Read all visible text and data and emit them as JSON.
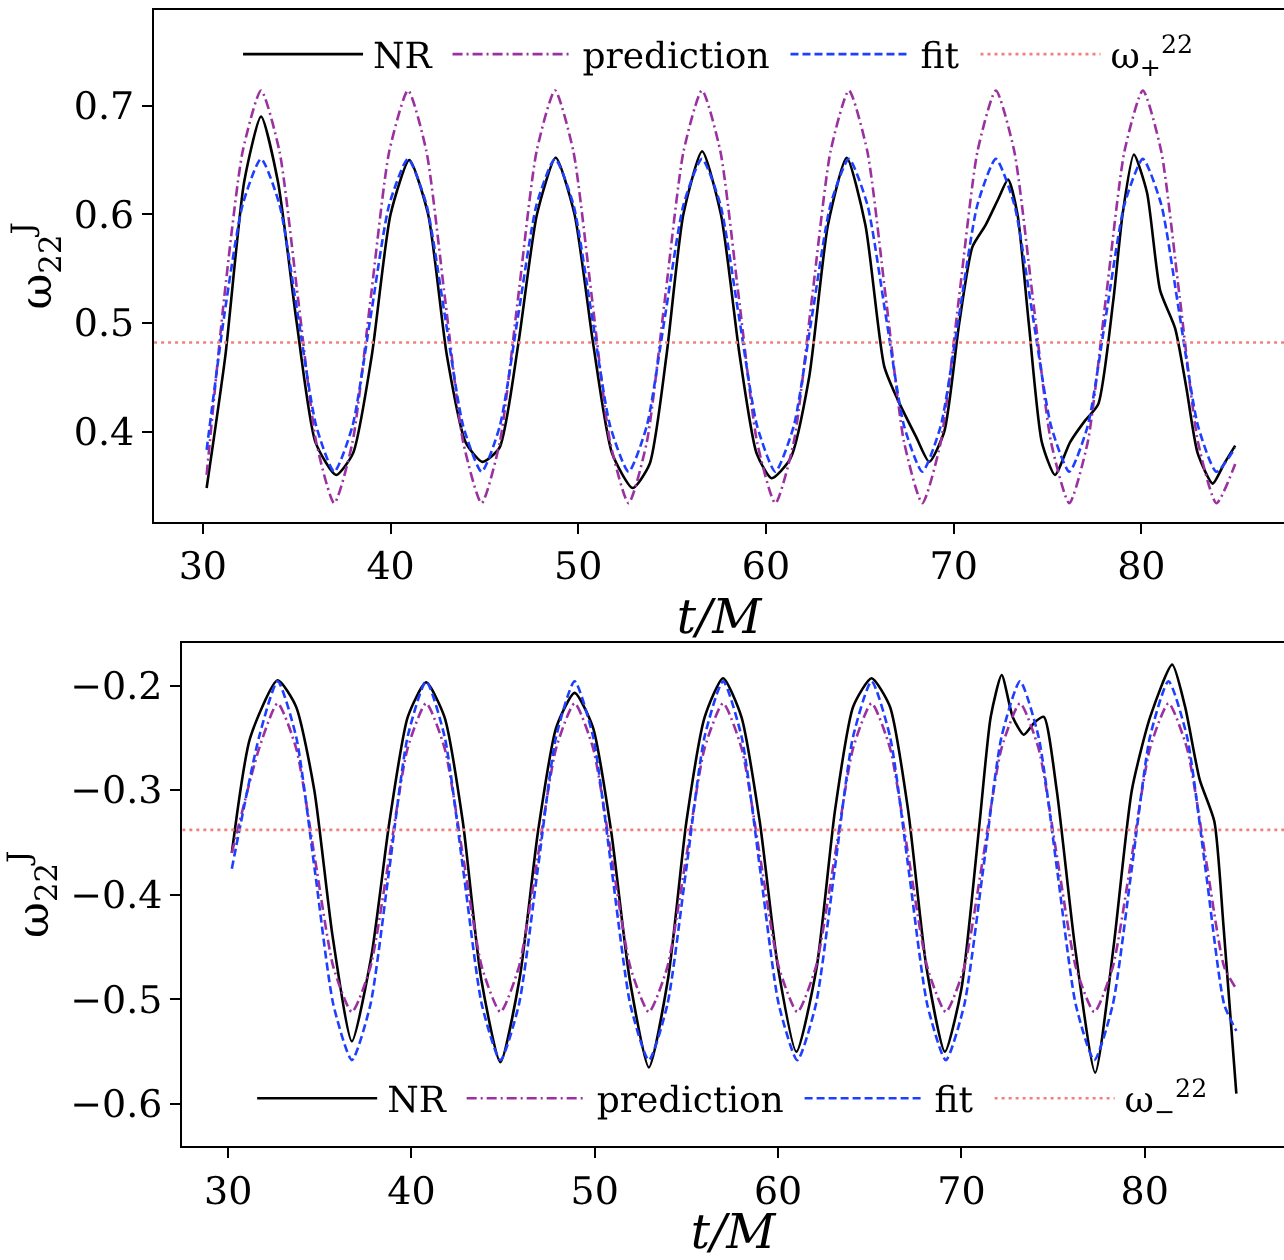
{
  "chart_data": [
    {
      "type": "line",
      "xlabel": "t/M",
      "ylabel": "ω$_{22}$$^{J}$",
      "xlim": [
        27.4,
        87.6
      ],
      "ylim": [
        0.317,
        0.788
      ],
      "xticks": [
        30,
        40,
        50,
        60,
        70,
        80
      ],
      "yticks": [
        0.4,
        0.5,
        0.6,
        0.7
      ],
      "legend": "top",
      "series": [
        {
          "name": "NR",
          "color": "#000000",
          "line_style": "solid",
          "x": [
            30.2,
            31.2,
            32.2,
            33.1,
            34.0,
            35.0,
            36.0,
            37.1,
            38.0,
            39.0,
            40.0,
            41.0,
            42.0,
            43.0,
            44.0,
            44.9,
            45.8,
            46.8,
            47.8,
            48.8,
            49.8,
            50.8,
            51.8,
            52.9,
            53.8,
            54.7,
            55.6,
            56.6,
            57.6,
            58.6,
            59.5,
            60.3,
            61.3,
            62.3,
            63.3,
            64.3,
            65.3,
            66.3,
            67.0,
            68.0,
            68.7,
            69.5,
            70.3,
            71.0,
            71.7,
            72.4,
            72.9,
            73.4,
            74.0,
            74.7,
            75.4,
            76.2,
            77.0,
            77.7,
            78.5,
            79.0,
            79.6,
            80.3,
            81.0,
            81.8,
            82.4,
            83.0,
            83.8,
            84.4,
            85.0
          ],
          "values": [
            0.348,
            0.47,
            0.63,
            0.69,
            0.63,
            0.5,
            0.39,
            0.36,
            0.38,
            0.47,
            0.6,
            0.65,
            0.6,
            0.47,
            0.39,
            0.372,
            0.385,
            0.48,
            0.6,
            0.652,
            0.6,
            0.48,
            0.38,
            0.348,
            0.37,
            0.47,
            0.6,
            0.658,
            0.6,
            0.47,
            0.38,
            0.357,
            0.375,
            0.45,
            0.59,
            0.652,
            0.59,
            0.46,
            0.43,
            0.395,
            0.372,
            0.4,
            0.5,
            0.57,
            0.59,
            0.615,
            0.632,
            0.6,
            0.5,
            0.39,
            0.36,
            0.39,
            0.41,
            0.425,
            0.52,
            0.6,
            0.655,
            0.62,
            0.53,
            0.495,
            0.44,
            0.38,
            0.352,
            0.37,
            0.387
          ]
        },
        {
          "name": "prediction",
          "color": "#9b30a0",
          "line_style": "dashdot",
          "x": [
            30.2,
            31.14,
            32.12,
            33.1,
            34.08,
            35.06,
            36.04,
            37.0,
            37.97,
            38.95,
            39.93,
            40.93,
            41.91,
            42.89,
            43.87,
            44.85,
            45.82,
            46.8,
            47.78,
            48.76,
            49.74,
            50.72,
            51.7,
            52.68,
            53.65,
            54.63,
            55.61,
            56.59,
            57.57,
            58.55,
            59.53,
            60.5,
            61.48,
            62.46,
            63.44,
            64.42,
            65.4,
            66.38,
            67.36,
            68.33,
            69.31,
            70.29,
            71.27,
            72.25,
            73.23,
            74.21,
            75.19,
            76.16,
            77.14,
            78.12,
            79.1,
            80.08,
            81.06,
            82.04,
            83.02,
            84.0,
            85.0
          ],
          "values": [
            0.36,
            0.524,
            0.658,
            0.714,
            0.658,
            0.524,
            0.39,
            0.334,
            0.39,
            0.524,
            0.658,
            0.714,
            0.658,
            0.524,
            0.39,
            0.334,
            0.39,
            0.524,
            0.658,
            0.714,
            0.658,
            0.524,
            0.39,
            0.334,
            0.39,
            0.524,
            0.658,
            0.714,
            0.658,
            0.524,
            0.39,
            0.334,
            0.39,
            0.524,
            0.658,
            0.714,
            0.658,
            0.524,
            0.39,
            0.334,
            0.39,
            0.524,
            0.658,
            0.714,
            0.658,
            0.524,
            0.39,
            0.334,
            0.39,
            0.524,
            0.658,
            0.714,
            0.658,
            0.524,
            0.39,
            0.334,
            0.37
          ]
        },
        {
          "name": "fit",
          "color": "#1f3fff",
          "line_style": "dashed",
          "x": [
            30.2,
            31.14,
            32.12,
            33.1,
            34.08,
            35.06,
            36.04,
            37.0,
            37.97,
            38.95,
            39.93,
            40.93,
            41.91,
            42.89,
            43.87,
            44.85,
            45.82,
            46.8,
            47.78,
            48.76,
            49.74,
            50.72,
            51.7,
            52.68,
            53.65,
            54.63,
            55.61,
            56.59,
            57.57,
            58.55,
            59.53,
            60.5,
            61.48,
            62.46,
            63.44,
            64.42,
            65.4,
            66.38,
            67.36,
            68.33,
            69.31,
            70.29,
            71.27,
            72.25,
            73.23,
            74.21,
            75.19,
            76.16,
            77.14,
            78.12,
            79.1,
            80.08,
            81.06,
            82.04,
            83.02,
            84.0,
            85.0
          ],
          "values": [
            0.383,
            0.507,
            0.609,
            0.651,
            0.609,
            0.507,
            0.405,
            0.363,
            0.405,
            0.507,
            0.609,
            0.651,
            0.609,
            0.507,
            0.405,
            0.363,
            0.405,
            0.507,
            0.609,
            0.651,
            0.609,
            0.507,
            0.405,
            0.363,
            0.405,
            0.507,
            0.609,
            0.651,
            0.609,
            0.507,
            0.405,
            0.363,
            0.405,
            0.507,
            0.609,
            0.651,
            0.609,
            0.507,
            0.405,
            0.363,
            0.405,
            0.507,
            0.609,
            0.651,
            0.609,
            0.507,
            0.405,
            0.363,
            0.405,
            0.507,
            0.609,
            0.651,
            0.609,
            0.507,
            0.405,
            0.363,
            0.385
          ]
        }
      ],
      "ref_lines": [
        {
          "axis": "y",
          "value": 0.482,
          "label": "ω$_{+}$$^{22}$",
          "color": "#f08080",
          "line_style": "dotted"
        }
      ]
    },
    {
      "type": "line",
      "xlabel": "t/M",
      "ylabel": "ω$_{22}$$^{J}$",
      "xlim": [
        27.5,
        87.6
      ],
      "ylim": [
        -0.64,
        -0.159
      ],
      "xticks": [
        30,
        40,
        50,
        60,
        70,
        80
      ],
      "yticks": [
        {
          "value": -0.6,
          "label": "−0.6"
        },
        {
          "value": -0.5,
          "label": "−0.5"
        },
        {
          "value": -0.4,
          "label": "−0.4"
        },
        {
          "value": -0.3,
          "label": "−0.3"
        },
        {
          "value": -0.2,
          "label": "−0.2"
        }
      ],
      "legend": "bottom",
      "series": [
        {
          "name": "NR",
          "color": "#000000",
          "line_style": "solid",
          "x": [
            30.2,
            31.2,
            32.7,
            33.7,
            34.7,
            35.7,
            36.75,
            37.8,
            38.8,
            39.8,
            40.8,
            41.8,
            42.8,
            43.8,
            44.85,
            45.9,
            46.9,
            47.9,
            48.9,
            49.9,
            50.9,
            51.9,
            52.95,
            54.0,
            55.0,
            56.0,
            57.0,
            58.0,
            59.0,
            60.0,
            61.0,
            62.1,
            63.1,
            64.1,
            65.1,
            66.1,
            67.1,
            68.1,
            69.1,
            70.0,
            71.0,
            71.6,
            72.2,
            72.8,
            73.4,
            74.0,
            74.5,
            75.2,
            76.2,
            77.3,
            78.3,
            79.3,
            80.3,
            81.5,
            82.2,
            83.0,
            83.8,
            84.3,
            85.0
          ],
          "values": [
            -0.36,
            -0.25,
            -0.195,
            -0.22,
            -0.3,
            -0.44,
            -0.54,
            -0.46,
            -0.33,
            -0.23,
            -0.197,
            -0.23,
            -0.33,
            -0.48,
            -0.56,
            -0.48,
            -0.34,
            -0.24,
            -0.207,
            -0.24,
            -0.34,
            -0.48,
            -0.565,
            -0.48,
            -0.33,
            -0.23,
            -0.193,
            -0.23,
            -0.33,
            -0.47,
            -0.55,
            -0.47,
            -0.32,
            -0.22,
            -0.193,
            -0.22,
            -0.32,
            -0.47,
            -0.55,
            -0.49,
            -0.33,
            -0.23,
            -0.19,
            -0.23,
            -0.247,
            -0.235,
            -0.23,
            -0.3,
            -0.45,
            -0.57,
            -0.45,
            -0.3,
            -0.23,
            -0.18,
            -0.22,
            -0.29,
            -0.33,
            -0.43,
            -0.59
          ]
        },
        {
          "name": "prediction",
          "color": "#9b30a0",
          "line_style": "dashdot",
          "x": [
            30.2,
            31.69,
            32.7,
            33.71,
            34.73,
            35.74,
            36.75,
            37.76,
            38.78,
            39.79,
            40.8,
            41.81,
            42.83,
            43.84,
            44.85,
            45.86,
            46.88,
            47.89,
            48.9,
            49.91,
            50.93,
            51.94,
            52.95,
            53.96,
            54.98,
            55.99,
            57.0,
            58.01,
            59.03,
            60.04,
            61.05,
            62.06,
            63.08,
            64.09,
            65.1,
            66.11,
            67.13,
            68.14,
            69.15,
            70.16,
            71.18,
            72.19,
            73.2,
            74.21,
            75.23,
            76.24,
            77.25,
            78.26,
            79.28,
            80.29,
            81.3,
            82.31,
            83.33,
            84.34,
            85.0
          ],
          "values": [
            -0.36,
            -0.26,
            -0.217,
            -0.26,
            -0.365,
            -0.469,
            -0.512,
            -0.469,
            -0.365,
            -0.26,
            -0.217,
            -0.26,
            -0.365,
            -0.469,
            -0.512,
            -0.469,
            -0.365,
            -0.26,
            -0.217,
            -0.26,
            -0.365,
            -0.469,
            -0.512,
            -0.469,
            -0.365,
            -0.26,
            -0.217,
            -0.26,
            -0.365,
            -0.469,
            -0.512,
            -0.469,
            -0.365,
            -0.26,
            -0.217,
            -0.26,
            -0.365,
            -0.469,
            -0.512,
            -0.469,
            -0.365,
            -0.26,
            -0.217,
            -0.26,
            -0.365,
            -0.469,
            -0.512,
            -0.469,
            -0.365,
            -0.26,
            -0.217,
            -0.26,
            -0.365,
            -0.469,
            -0.49
          ]
        },
        {
          "name": "fit",
          "color": "#1f3fff",
          "line_style": "dashed",
          "x": [
            30.2,
            31.69,
            32.7,
            33.71,
            34.73,
            35.74,
            36.75,
            37.76,
            38.78,
            39.79,
            40.8,
            41.81,
            42.83,
            43.84,
            44.85,
            45.86,
            46.88,
            47.89,
            48.9,
            49.91,
            50.93,
            51.94,
            52.95,
            53.96,
            54.98,
            55.99,
            57.0,
            58.01,
            59.03,
            60.04,
            61.05,
            62.06,
            63.08,
            64.09,
            65.1,
            66.11,
            67.13,
            68.14,
            69.15,
            70.16,
            71.18,
            72.19,
            73.2,
            74.21,
            75.23,
            76.24,
            77.25,
            78.26,
            79.28,
            80.29,
            81.3,
            82.31,
            83.33,
            84.34,
            85.0
          ],
          "values": [
            -0.375,
            -0.249,
            -0.196,
            -0.249,
            -0.377,
            -0.505,
            -0.558,
            -0.505,
            -0.377,
            -0.249,
            -0.196,
            -0.249,
            -0.377,
            -0.505,
            -0.558,
            -0.505,
            -0.377,
            -0.249,
            -0.196,
            -0.249,
            -0.377,
            -0.505,
            -0.558,
            -0.505,
            -0.377,
            -0.249,
            -0.196,
            -0.249,
            -0.377,
            -0.505,
            -0.558,
            -0.505,
            -0.377,
            -0.249,
            -0.196,
            -0.249,
            -0.377,
            -0.505,
            -0.558,
            -0.505,
            -0.377,
            -0.249,
            -0.196,
            -0.249,
            -0.377,
            -0.505,
            -0.558,
            -0.505,
            -0.377,
            -0.249,
            -0.196,
            -0.249,
            -0.377,
            -0.505,
            -0.53
          ]
        }
      ],
      "ref_lines": [
        {
          "axis": "y",
          "value": -0.338,
          "label": "ω$_{−}$$^{22}$",
          "color": "#f08080",
          "line_style": "dotted"
        }
      ]
    }
  ]
}
